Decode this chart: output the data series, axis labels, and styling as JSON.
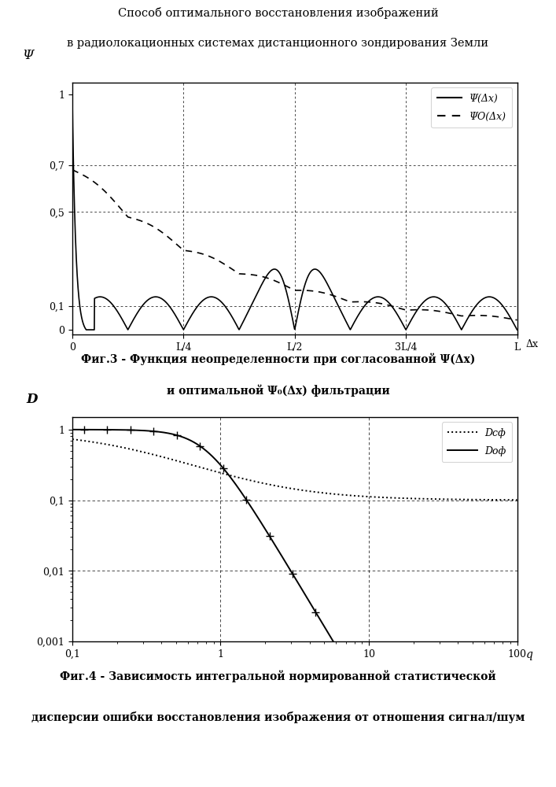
{
  "title_line1": "Способ оптимального восстановления изображений",
  "title_line2": "в радиолокационных системах дистанционного зондирования Земли",
  "fig3_ylabel": "Ψ",
  "fig3_xlabel": "Δx",
  "fig3_ytick_vals": [
    0,
    0.1,
    0.5,
    0.7,
    1
  ],
  "fig3_ytick_labels": [
    "0",
    "0,1",
    "0,5",
    "0,7",
    "1"
  ],
  "fig3_xtick_labels": [
    "0",
    "L/4",
    "L/2",
    "3L/4",
    "L"
  ],
  "fig3_caption_line1": "Фиг.3 - Функция неопределенности при согласованной Ψ(Δx)",
  "fig3_caption_line2": "и оптимальной Ψ₀(Δx) фильтрации",
  "fig3_legend1": "Ψ(Δx)",
  "fig3_legend2": "ΨO(Δx)",
  "fig4_ylabel": "D",
  "fig4_xlabel": "q",
  "fig4_ytick_vals": [
    0.001,
    0.01,
    0.1,
    1
  ],
  "fig4_ytick_labels": [
    "0,001",
    "0,01",
    "0,1",
    "1"
  ],
  "fig4_xtick_vals": [
    0.1,
    1,
    10,
    100
  ],
  "fig4_xtick_labels": [
    "0,1",
    "1",
    "10",
    "100"
  ],
  "fig4_caption_line1": "Фиг.4 - Зависимость интегральной нормированной статистической",
  "fig4_caption_line2": "дисперсии ошибки восстановления изображения от отношения сигнал/шум",
  "fig4_legend1": "Dcф",
  "fig4_legend2": "Doф",
  "bg_color": "#ffffff"
}
